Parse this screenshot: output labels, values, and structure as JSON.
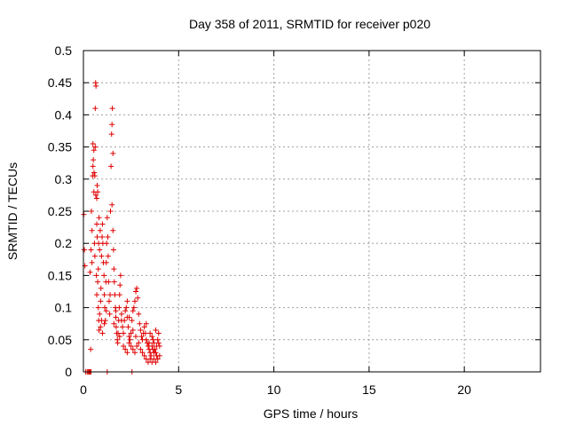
{
  "chart_data": {
    "type": "scatter",
    "title": "Day 358 of 2011, SRMTID for receiver p020",
    "xlabel": "GPS time / hours",
    "ylabel": "SRMTID / TECUs",
    "xlim": [
      0,
      24
    ],
    "ylim": [
      0,
      0.5
    ],
    "xticks": [
      0,
      5,
      10,
      15,
      20
    ],
    "xtick_labels": [
      "0",
      "5",
      "10",
      "15",
      "20"
    ],
    "yticks": [
      0,
      0.05,
      0.1,
      0.15,
      0.2,
      0.25,
      0.3,
      0.35,
      0.4,
      0.45,
      0.5
    ],
    "ytick_labels": [
      "0",
      "0.05",
      "0.1",
      "0.15",
      "0.2",
      "0.25",
      "0.3",
      "0.35",
      "0.4",
      "0.45",
      "0.5"
    ],
    "grid": true,
    "marker": "+",
    "color": "#e00000",
    "series": [
      {
        "name": "SRMTID",
        "points": [
          [
            0.02,
            0.245
          ],
          [
            0.05,
            0.19
          ],
          [
            0.08,
            0.165
          ],
          [
            0.12,
            0.0
          ],
          [
            0.2,
            0.0
          ],
          [
            0.25,
            0.0
          ],
          [
            0.3,
            0.0
          ],
          [
            0.35,
            0.0
          ],
          [
            0.4,
            0.0
          ],
          [
            1.25,
            0.0
          ],
          [
            2.55,
            0.0
          ],
          [
            0.38,
            0.035
          ],
          [
            0.35,
            0.155
          ],
          [
            0.4,
            0.19
          ],
          [
            0.45,
            0.17
          ],
          [
            0.45,
            0.22
          ],
          [
            0.42,
            0.25
          ],
          [
            0.48,
            0.305
          ],
          [
            0.5,
            0.32
          ],
          [
            0.52,
            0.33
          ],
          [
            0.5,
            0.355
          ],
          [
            0.55,
            0.345
          ],
          [
            0.56,
            0.31
          ],
          [
            0.55,
            0.28
          ],
          [
            0.6,
            0.305
          ],
          [
            0.62,
            0.41
          ],
          [
            0.64,
            0.45
          ],
          [
            0.66,
            0.445
          ],
          [
            0.62,
            0.35
          ],
          [
            0.58,
            0.2
          ],
          [
            0.6,
            0.18
          ],
          [
            0.65,
            0.275
          ],
          [
            0.7,
            0.27
          ],
          [
            0.72,
            0.29
          ],
          [
            0.75,
            0.28
          ],
          [
            0.7,
            0.23
          ],
          [
            0.72,
            0.21
          ],
          [
            0.68,
            0.15
          ],
          [
            0.7,
            0.12
          ],
          [
            0.75,
            0.14
          ],
          [
            0.78,
            0.16
          ],
          [
            0.8,
            0.2
          ],
          [
            0.82,
            0.24
          ],
          [
            0.85,
            0.19
          ],
          [
            0.88,
            0.22
          ],
          [
            0.78,
            0.1
          ],
          [
            0.8,
            0.08
          ],
          [
            0.82,
            0.065
          ],
          [
            0.85,
            0.09
          ],
          [
            0.9,
            0.11
          ],
          [
            0.92,
            0.13
          ],
          [
            0.95,
            0.18
          ],
          [
            0.98,
            0.21
          ],
          [
            1.0,
            0.23
          ],
          [
            1.02,
            0.2
          ],
          [
            1.05,
            0.17
          ],
          [
            1.08,
            0.15
          ],
          [
            1.1,
            0.12
          ],
          [
            1.12,
            0.1
          ],
          [
            1.15,
            0.08
          ],
          [
            1.0,
            0.06
          ],
          [
            0.95,
            0.08
          ],
          [
            1.18,
            0.14
          ],
          [
            1.2,
            0.17
          ],
          [
            1.22,
            0.2
          ],
          [
            1.25,
            0.24
          ],
          [
            1.28,
            0.21
          ],
          [
            1.3,
            0.18
          ],
          [
            1.32,
            0.14
          ],
          [
            1.35,
            0.11
          ],
          [
            1.38,
            0.09
          ],
          [
            1.4,
            0.12
          ],
          [
            1.42,
            0.25
          ],
          [
            1.45,
            0.32
          ],
          [
            1.48,
            0.37
          ],
          [
            1.5,
            0.385
          ],
          [
            1.52,
            0.41
          ],
          [
            1.55,
            0.34
          ],
          [
            1.5,
            0.26
          ],
          [
            1.55,
            0.22
          ],
          [
            1.58,
            0.19
          ],
          [
            1.6,
            0.16
          ],
          [
            1.62,
            0.14
          ],
          [
            1.65,
            0.12
          ],
          [
            1.68,
            0.1
          ],
          [
            1.7,
            0.085
          ],
          [
            1.72,
            0.07
          ],
          [
            1.75,
            0.06
          ],
          [
            1.78,
            0.05
          ],
          [
            1.8,
            0.045
          ],
          [
            1.82,
            0.06
          ],
          [
            1.85,
            0.08
          ],
          [
            1.88,
            0.1
          ],
          [
            1.9,
            0.12
          ],
          [
            1.92,
            0.135
          ],
          [
            1.95,
            0.15
          ],
          [
            2.0,
            0.09
          ],
          [
            2.05,
            0.07
          ],
          [
            2.1,
            0.06
          ],
          [
            2.15,
            0.08
          ],
          [
            2.2,
            0.095
          ],
          [
            2.25,
            0.1
          ],
          [
            2.3,
            0.085
          ],
          [
            2.35,
            0.07
          ],
          [
            2.4,
            0.055
          ],
          [
            2.45,
            0.05
          ],
          [
            2.5,
            0.06
          ],
          [
            2.55,
            0.08
          ],
          [
            2.6,
            0.095
          ],
          [
            2.65,
            0.1
          ],
          [
            2.7,
            0.11
          ],
          [
            2.75,
            0.125
          ],
          [
            2.8,
            0.13
          ],
          [
            2.85,
            0.115
          ],
          [
            2.9,
            0.09
          ],
          [
            2.95,
            0.075
          ],
          [
            3.0,
            0.065
          ],
          [
            3.05,
            0.055
          ],
          [
            3.1,
            0.05
          ],
          [
            3.15,
            0.06
          ],
          [
            3.2,
            0.07
          ],
          [
            3.25,
            0.06
          ],
          [
            3.3,
            0.05
          ],
          [
            3.35,
            0.045
          ],
          [
            3.4,
            0.04
          ],
          [
            3.45,
            0.035
          ],
          [
            3.5,
            0.03
          ],
          [
            3.55,
            0.025
          ],
          [
            3.6,
            0.04
          ],
          [
            3.65,
            0.05
          ],
          [
            3.7,
            0.045
          ],
          [
            3.75,
            0.035
          ],
          [
            3.8,
            0.03
          ],
          [
            3.85,
            0.04
          ],
          [
            3.9,
            0.05
          ],
          [
            3.95,
            0.045
          ],
          [
            4.0,
            0.04
          ],
          [
            2.1,
            0.04
          ],
          [
            2.2,
            0.035
          ],
          [
            2.3,
            0.03
          ],
          [
            2.4,
            0.045
          ],
          [
            2.5,
            0.04
          ],
          [
            2.6,
            0.035
          ],
          [
            2.7,
            0.03
          ],
          [
            2.8,
            0.04
          ],
          [
            2.9,
            0.045
          ],
          [
            3.0,
            0.035
          ],
          [
            3.1,
            0.03
          ],
          [
            3.2,
            0.025
          ],
          [
            3.3,
            0.02
          ],
          [
            3.4,
            0.015
          ],
          [
            3.5,
            0.02
          ],
          [
            3.6,
            0.015
          ],
          [
            3.7,
            0.02
          ],
          [
            3.8,
            0.015
          ],
          [
            3.9,
            0.02
          ],
          [
            4.0,
            0.025
          ],
          [
            1.7,
            0.095
          ],
          [
            1.9,
            0.055
          ],
          [
            2.0,
            0.08
          ],
          [
            2.3,
            0.11
          ],
          [
            2.4,
            0.085
          ],
          [
            2.6,
            0.065
          ],
          [
            2.75,
            0.055
          ],
          [
            3.3,
            0.075
          ],
          [
            3.5,
            0.06
          ],
          [
            3.6,
            0.055
          ],
          [
            3.8,
            0.065
          ],
          [
            3.95,
            0.06
          ],
          [
            0.9,
            0.07
          ],
          [
            1.1,
            0.075
          ],
          [
            1.2,
            0.095
          ],
          [
            1.6,
            0.075
          ],
          [
            3.7,
            0.03
          ],
          [
            3.85,
            0.025
          ],
          [
            3.45,
            0.045
          ],
          [
            3.65,
            0.035
          ]
        ]
      }
    ]
  }
}
